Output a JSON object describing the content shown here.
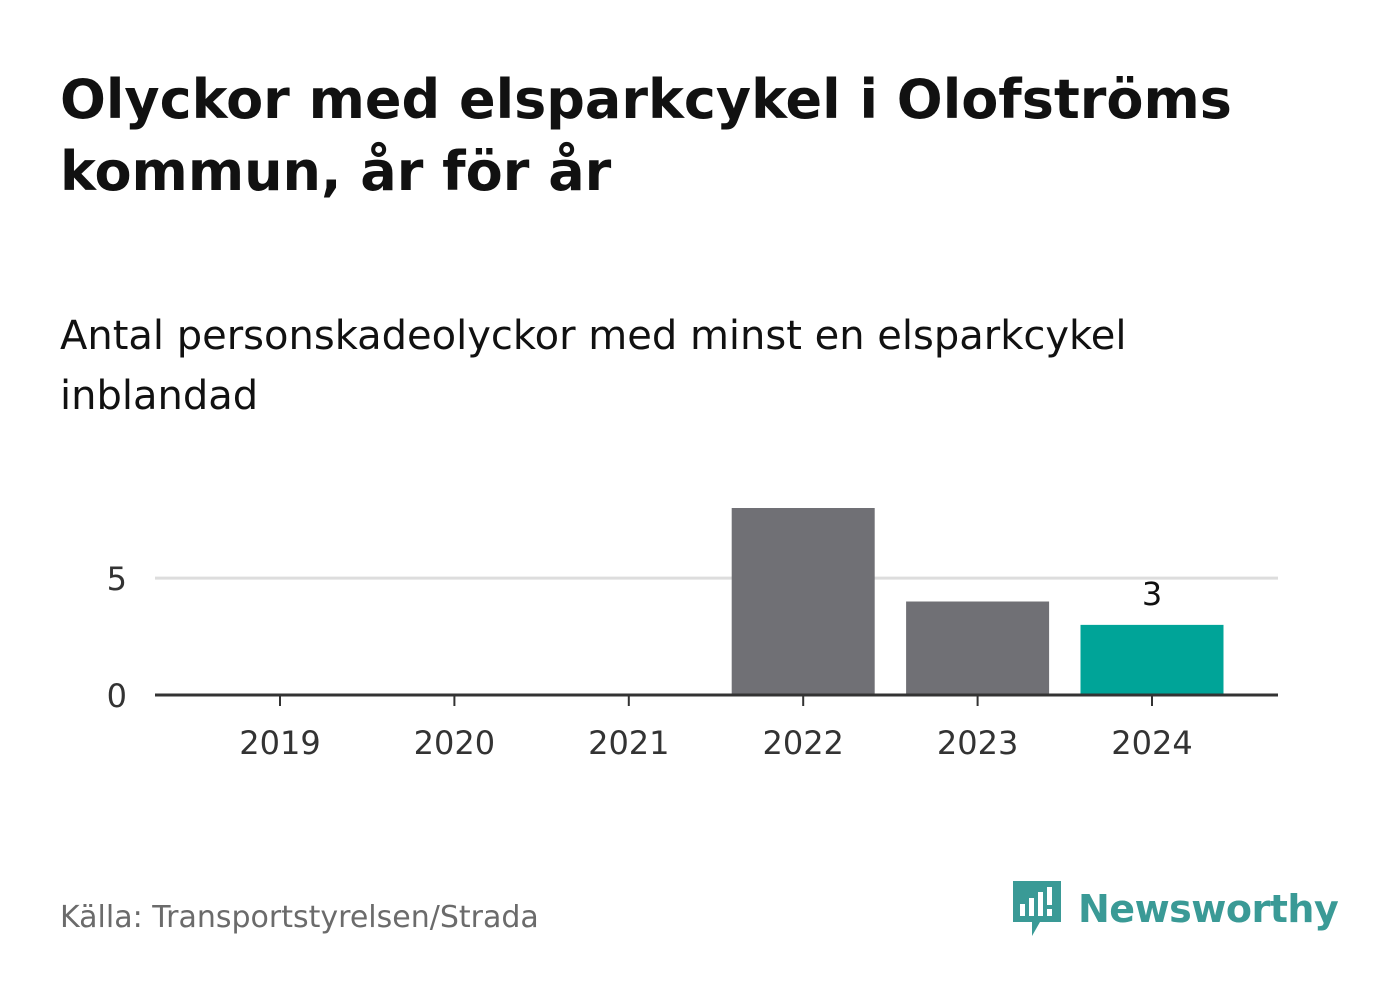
{
  "header": {
    "title": "Olyckor med elsparkcykel i Olofströms kommun, år för år",
    "subtitle": "Antal personskadeolyckor med minst en elsparkcykel inblandad"
  },
  "footer": {
    "source": "Källa: Transportstyrelsen/Strada",
    "brand": "Newsworthy"
  },
  "colors": {
    "bar_default": "#707075",
    "bar_highlight": "#00a498",
    "grid": "#dddddd",
    "axis": "#333333",
    "brand": "#3a9a96"
  },
  "chart_data": {
    "type": "bar",
    "categories": [
      "2019",
      "2020",
      "2021",
      "2022",
      "2023",
      "2024"
    ],
    "values": [
      0,
      0,
      0,
      8,
      4,
      3
    ],
    "highlight_index": 5,
    "data_labels": [
      {
        "index": 5,
        "text": "3"
      }
    ],
    "yticks": [
      0,
      5
    ],
    "ylim": [
      0,
      8
    ],
    "grid": true,
    "title": "Olyckor med elsparkcykel i Olofströms kommun, år för år",
    "xlabel": "",
    "ylabel": ""
  }
}
